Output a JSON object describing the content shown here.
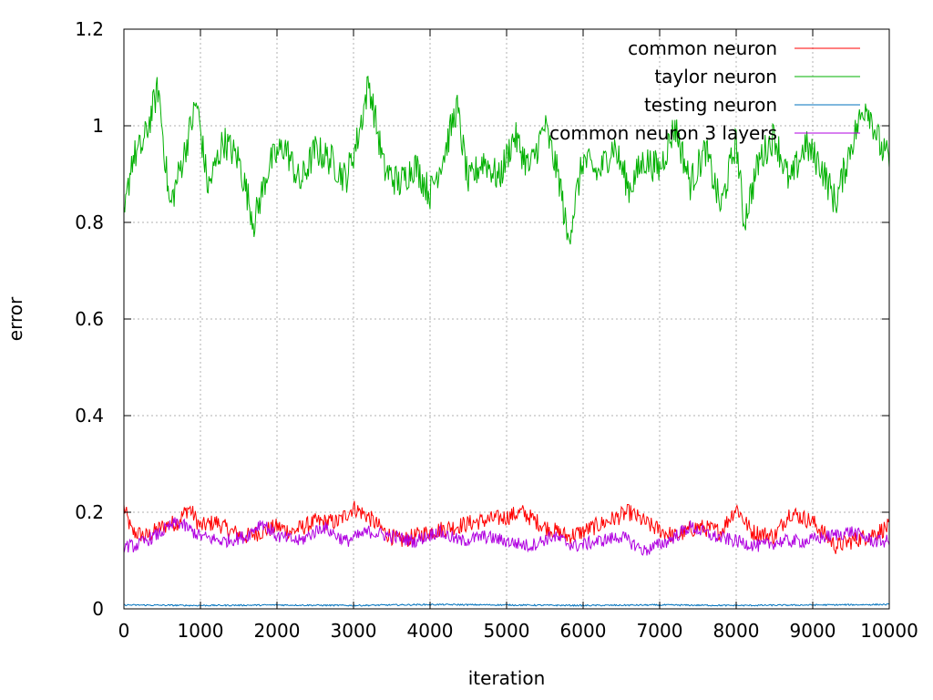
{
  "chart_data": {
    "type": "line",
    "title": "",
    "xlabel": "iteration",
    "ylabel": "error",
    "xlim": [
      0,
      10000
    ],
    "ylim": [
      0,
      1.2
    ],
    "xticks": [
      0,
      1000,
      2000,
      3000,
      4000,
      5000,
      6000,
      7000,
      8000,
      9000,
      10000
    ],
    "xtick_labels": [
      "0",
      "1000",
      "2000",
      "3000",
      "4000",
      "5000",
      "6000",
      "7000",
      "8000",
      "9000",
      "10000"
    ],
    "yticks": [
      0,
      0.2,
      0.4,
      0.6,
      0.8,
      1.0,
      1.2
    ],
    "ytick_labels": [
      "0",
      "0.2",
      "0.4",
      "0.6",
      "0.8",
      "1",
      "1.2"
    ],
    "grid": true,
    "legend_position": "top-right",
    "series": [
      {
        "name": "common neuron",
        "color": "#ff0000",
        "x": [
          0,
          100,
          300,
          500,
          700,
          850,
          1000,
          1200,
          1400,
          1600,
          1800,
          2000,
          2200,
          2500,
          2800,
          3000,
          3200,
          3400,
          3600,
          3800,
          4000,
          4300,
          4600,
          5000,
          5200,
          5500,
          5800,
          6000,
          6300,
          6600,
          6900,
          7200,
          7500,
          7800,
          8000,
          8200,
          8500,
          8700,
          9000,
          9300,
          9500,
          9700,
          10000
        ],
        "y": [
          0.21,
          0.16,
          0.15,
          0.17,
          0.18,
          0.21,
          0.17,
          0.18,
          0.16,
          0.15,
          0.16,
          0.17,
          0.16,
          0.18,
          0.18,
          0.21,
          0.19,
          0.16,
          0.14,
          0.15,
          0.16,
          0.17,
          0.18,
          0.19,
          0.2,
          0.17,
          0.15,
          0.16,
          0.18,
          0.2,
          0.17,
          0.15,
          0.17,
          0.16,
          0.21,
          0.16,
          0.15,
          0.2,
          0.18,
          0.13,
          0.14,
          0.15,
          0.17
        ]
      },
      {
        "name": "taylor neuron",
        "color": "#00b000",
        "x": [
          0,
          100,
          250,
          450,
          600,
          800,
          950,
          1100,
          1300,
          1500,
          1700,
          1900,
          2100,
          2300,
          2500,
          2700,
          2900,
          3050,
          3200,
          3400,
          3600,
          3800,
          4000,
          4200,
          4350,
          4500,
          4700,
          4900,
          5100,
          5300,
          5500,
          5700,
          5800,
          6000,
          6200,
          6400,
          6600,
          6800,
          7000,
          7200,
          7400,
          7600,
          7800,
          8000,
          8100,
          8300,
          8500,
          8700,
          8900,
          9100,
          9300,
          9500,
          9700,
          9900,
          10000
        ],
        "y": [
          0.8,
          0.93,
          0.96,
          1.08,
          0.83,
          0.95,
          1.05,
          0.87,
          0.97,
          0.93,
          0.8,
          0.92,
          0.96,
          0.88,
          0.95,
          0.93,
          0.89,
          0.97,
          1.09,
          0.91,
          0.88,
          0.92,
          0.86,
          0.95,
          1.04,
          0.88,
          0.93,
          0.89,
          0.98,
          0.91,
          1.0,
          0.88,
          0.76,
          0.93,
          0.9,
          0.96,
          0.87,
          0.93,
          0.91,
          1.0,
          0.88,
          0.95,
          0.83,
          0.97,
          0.8,
          0.93,
          0.98,
          0.88,
          0.96,
          0.92,
          0.84,
          0.96,
          1.05,
          0.95,
          0.93
        ]
      },
      {
        "name": "testing neuron",
        "color": "#0072bd",
        "x": [
          0,
          1000,
          2000,
          3000,
          4000,
          5000,
          6000,
          7000,
          8000,
          9000,
          10000
        ],
        "y": [
          0.008,
          0.007,
          0.008,
          0.007,
          0.009,
          0.008,
          0.007,
          0.008,
          0.007,
          0.008,
          0.009
        ]
      },
      {
        "name": "common neuron 3 layers",
        "color": "#b000e0",
        "x": [
          0,
          150,
          400,
          700,
          1000,
          1300,
          1600,
          1800,
          2000,
          2300,
          2600,
          2900,
          3200,
          3500,
          3800,
          4100,
          4400,
          4700,
          5000,
          5300,
          5600,
          5900,
          6200,
          6500,
          6800,
          7100,
          7400,
          7700,
          8000,
          8300,
          8600,
          8900,
          9200,
          9500,
          9800,
          10000
        ],
        "y": [
          0.13,
          0.13,
          0.15,
          0.18,
          0.15,
          0.14,
          0.15,
          0.18,
          0.15,
          0.14,
          0.17,
          0.14,
          0.16,
          0.15,
          0.14,
          0.16,
          0.14,
          0.15,
          0.14,
          0.13,
          0.15,
          0.13,
          0.14,
          0.15,
          0.12,
          0.14,
          0.17,
          0.15,
          0.14,
          0.13,
          0.14,
          0.14,
          0.15,
          0.16,
          0.14,
          0.14
        ]
      }
    ]
  }
}
